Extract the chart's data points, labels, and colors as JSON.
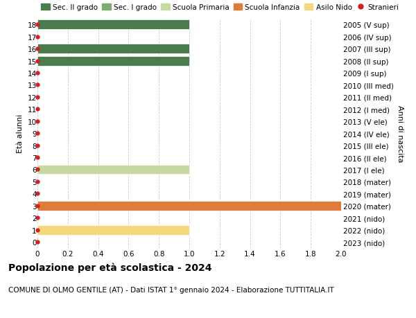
{
  "title": "Popolazione per età scolastica - 2024",
  "subtitle": "COMUNE DI OLMO GENTILE (AT) - Dati ISTAT 1° gennaio 2024 - Elaborazione TUTTITALIA.IT",
  "ylabel": "Età alunni",
  "right_ylabel": "Anni di nascita",
  "xlim": [
    0,
    2.0
  ],
  "ylim": [
    -0.5,
    18.5
  ],
  "yticks": [
    0,
    1,
    2,
    3,
    4,
    5,
    6,
    7,
    8,
    9,
    10,
    11,
    12,
    13,
    14,
    15,
    16,
    17,
    18
  ],
  "xticks": [
    0,
    0.2,
    0.4,
    0.6,
    0.8,
    1.0,
    1.2,
    1.4,
    1.6,
    1.8,
    2.0
  ],
  "xtick_labels": [
    "0",
    "0.2",
    "0.4",
    "0.6",
    "0.8",
    "1.0",
    "1.2",
    "1.4",
    "1.6",
    "1.8",
    "2.0"
  ],
  "right_labels": [
    "2023 (nido)",
    "2022 (nido)",
    "2021 (nido)",
    "2020 (mater)",
    "2019 (mater)",
    "2018 (mater)",
    "2017 (I ele)",
    "2016 (II ele)",
    "2015 (III ele)",
    "2014 (IV ele)",
    "2013 (V ele)",
    "2012 (I med)",
    "2011 (II med)",
    "2010 (III med)",
    "2009 (I sup)",
    "2008 (II sup)",
    "2007 (III sup)",
    "2006 (IV sup)",
    "2005 (V sup)"
  ],
  "bars": [
    {
      "age": 18,
      "value": 1.0,
      "color": "#4a7c4e"
    },
    {
      "age": 16,
      "value": 1.0,
      "color": "#4a7c4e"
    },
    {
      "age": 15,
      "value": 1.0,
      "color": "#4a7c4e"
    },
    {
      "age": 6,
      "value": 1.0,
      "color": "#c5d9a0"
    },
    {
      "age": 3,
      "value": 2.0,
      "color": "#e07b39"
    },
    {
      "age": 1,
      "value": 1.0,
      "color": "#f5d87e"
    }
  ],
  "stranieri_dots": [
    0,
    1,
    2,
    3,
    4,
    5,
    6,
    7,
    8,
    9,
    10,
    11,
    12,
    13,
    14,
    15,
    16,
    17,
    18
  ],
  "stranieri_color": "#cc2222",
  "legend_items": [
    {
      "label": "Sec. II grado",
      "color": "#4a7c4e",
      "type": "patch"
    },
    {
      "label": "Sec. I grado",
      "color": "#7daa6e",
      "type": "patch"
    },
    {
      "label": "Scuola Primaria",
      "color": "#c5d9a0",
      "type": "patch"
    },
    {
      "label": "Scuola Infanzia",
      "color": "#e07b39",
      "type": "patch"
    },
    {
      "label": "Asilo Nido",
      "color": "#f5d87e",
      "type": "patch"
    },
    {
      "label": "Stranieri",
      "color": "#cc2222",
      "type": "dot"
    }
  ],
  "bar_height": 0.8,
  "background_color": "#ffffff",
  "grid_color": "#cccccc",
  "title_fontsize": 10,
  "subtitle_fontsize": 7.5,
  "axis_label_fontsize": 8,
  "tick_fontsize": 7.5,
  "legend_fontsize": 7.5
}
